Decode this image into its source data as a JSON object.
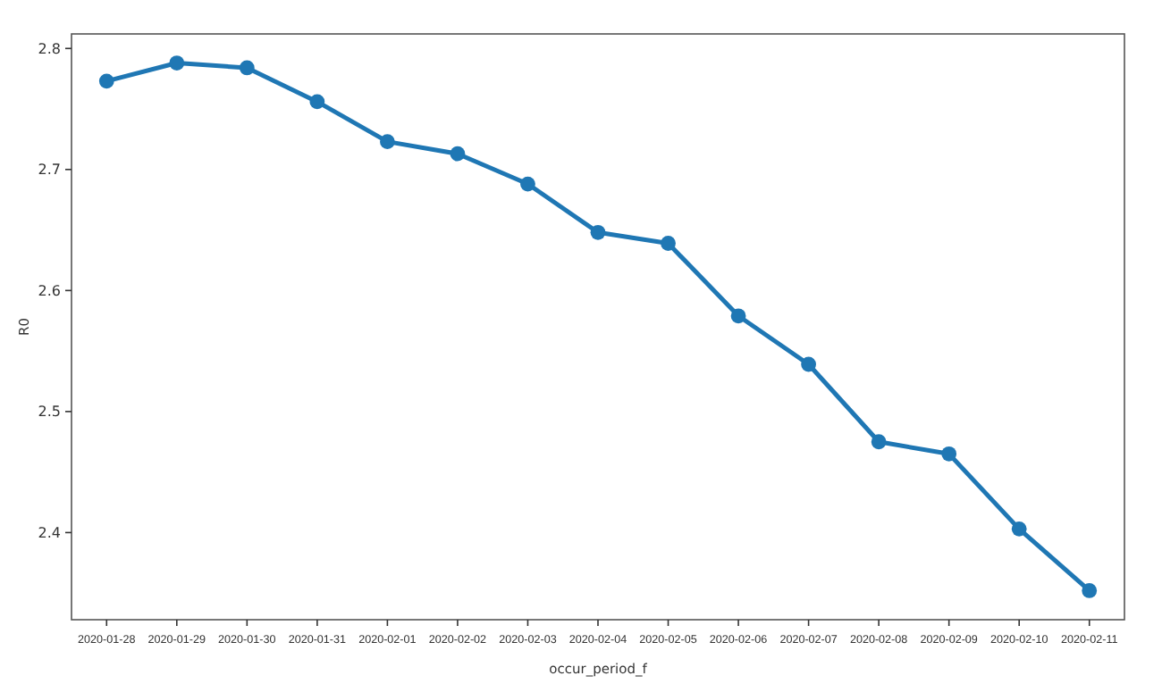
{
  "chart_data": {
    "type": "line",
    "xlabel": "occur_period_f",
    "ylabel": "R0",
    "categories": [
      "2020-01-28",
      "2020-01-29",
      "2020-01-30",
      "2020-01-31",
      "2020-02-01",
      "2020-02-02",
      "2020-02-03",
      "2020-02-04",
      "2020-02-05",
      "2020-02-06",
      "2020-02-07",
      "2020-02-08",
      "2020-02-09",
      "2020-02-10",
      "2020-02-11"
    ],
    "series": [
      {
        "color": "#1f77b4",
        "values": [
          2.773,
          2.788,
          2.784,
          2.756,
          2.723,
          2.713,
          2.688,
          2.648,
          2.639,
          2.579,
          2.539,
          2.475,
          2.465,
          2.403,
          2.352
        ]
      }
    ],
    "ylim": [
      2.328,
      2.812
    ],
    "yticks": [
      2.4,
      2.5,
      2.6,
      2.7,
      2.8
    ],
    "marker": "circle",
    "line_style": "solid"
  }
}
